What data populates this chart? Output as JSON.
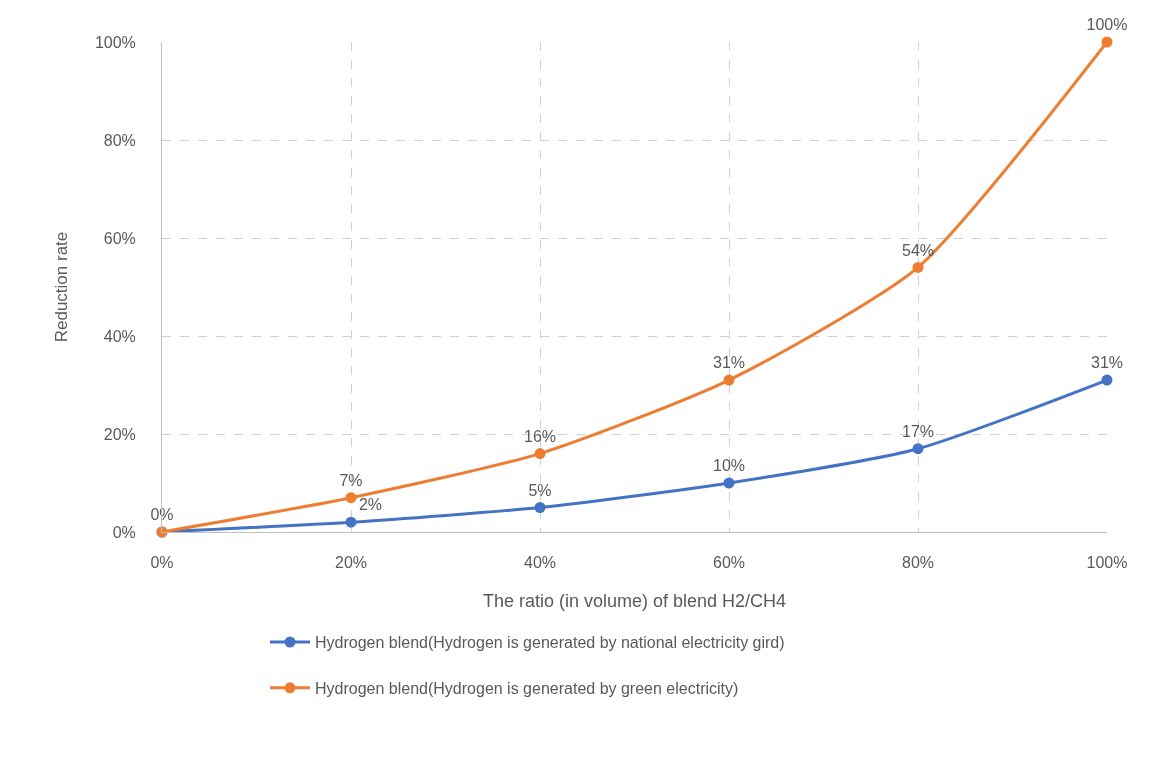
{
  "chart_data": {
    "type": "line",
    "xlabel": "The ratio (in volume) of blend H2/CH4",
    "ylabel": "Reduction rate",
    "x": [
      0,
      20,
      40,
      60,
      80,
      100
    ],
    "xlim": [
      0,
      100
    ],
    "xticks": [
      {
        "value": 0,
        "label": "0%"
      },
      {
        "value": 20,
        "label": "20%"
      },
      {
        "value": 40,
        "label": "40%"
      },
      {
        "value": 60,
        "label": "60%"
      },
      {
        "value": 80,
        "label": "80%"
      },
      {
        "value": 100,
        "label": "100%"
      }
    ],
    "ylim": [
      0,
      100
    ],
    "yticks": [
      {
        "value": 0,
        "label": "0%"
      },
      {
        "value": 20,
        "label": "20%"
      },
      {
        "value": 40,
        "label": "40%"
      },
      {
        "value": 60,
        "label": "60%"
      },
      {
        "value": 80,
        "label": "80%"
      },
      {
        "value": 100,
        "label": "100%"
      }
    ],
    "grid": true,
    "legend": "bottom",
    "marker": "circle",
    "line_style": "solid",
    "series": [
      {
        "name": "Hydrogen blend(Hydrogen is generated by national electricity gird)",
        "color": "#4472c4",
        "values": [
          0,
          2,
          5,
          10,
          17,
          31
        ],
        "value_labels": [
          null,
          "2%",
          "5%",
          "10%",
          "17%",
          "31%"
        ]
      },
      {
        "name": "Hydrogen blend(Hydrogen is generated by green electricity)",
        "color": "#ed7d31",
        "values": [
          0,
          7,
          16,
          31,
          54,
          100
        ],
        "value_labels": [
          "0%",
          "7%",
          "16%",
          "31%",
          "54%",
          "100%"
        ]
      }
    ]
  }
}
